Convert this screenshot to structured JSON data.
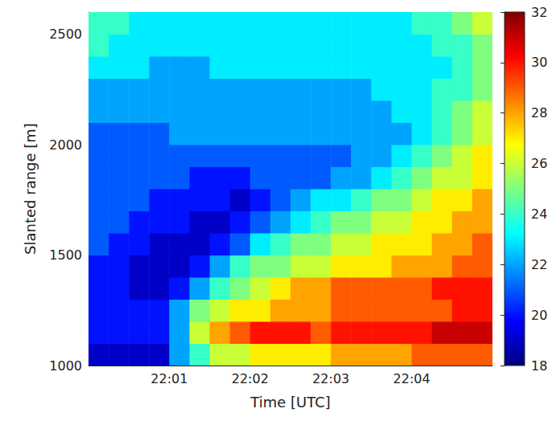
{
  "chart_data": {
    "type": "heatmap",
    "x_label": "Time [UTC]",
    "y_label": "Slanted range [m]",
    "x": [
      1320.125,
      1320.375,
      1320.625,
      1320.875,
      1321.125,
      1321.375,
      1321.625,
      1321.875,
      1322.125,
      1322.375,
      1322.625,
      1322.875,
      1323.125,
      1323.375,
      1323.625,
      1323.875,
      1324.125,
      1324.375,
      1324.625,
      1324.875
    ],
    "y": [
      1050,
      1150,
      1250,
      1350,
      1450,
      1550,
      1650,
      1750,
      1850,
      1950,
      2050,
      2150,
      2250,
      2350,
      2450,
      2550
    ],
    "values": [
      [
        19,
        19,
        19,
        19,
        22,
        24,
        26,
        26,
        27,
        27,
        27,
        27,
        28,
        28,
        28,
        28,
        29,
        29,
        29,
        29
      ],
      [
        20,
        20,
        20,
        20,
        22,
        26,
        28,
        29,
        30,
        30,
        30,
        29,
        30,
        30,
        30,
        30,
        30,
        31,
        31,
        31
      ],
      [
        20,
        20,
        20,
        20,
        22,
        25,
        26,
        27,
        27,
        28,
        28,
        28,
        29,
        29,
        29,
        29,
        29,
        29,
        30,
        30
      ],
      [
        20,
        20,
        19,
        19,
        20,
        22,
        24,
        25,
        26,
        27,
        28,
        28,
        29,
        29,
        29,
        29,
        29,
        30,
        30,
        30
      ],
      [
        20,
        20,
        19,
        19,
        19,
        20,
        22,
        24,
        25,
        25,
        26,
        26,
        27,
        27,
        27,
        28,
        28,
        28,
        29,
        29
      ],
      [
        21,
        20,
        20,
        19,
        19,
        19,
        20,
        21,
        23,
        24,
        25,
        25,
        26,
        26,
        27,
        27,
        27,
        28,
        28,
        29
      ],
      [
        21,
        21,
        20,
        20,
        20,
        19,
        19,
        20,
        21,
        22,
        23,
        24,
        25,
        25,
        26,
        26,
        27,
        27,
        28,
        28
      ],
      [
        21,
        21,
        21,
        20,
        20,
        20,
        20,
        19,
        20,
        21,
        22,
        23,
        23,
        24,
        25,
        25,
        26,
        27,
        27,
        28
      ],
      [
        21,
        21,
        21,
        21,
        21,
        20,
        20,
        20,
        21,
        21,
        21,
        21,
        22,
        22,
        23,
        24,
        25,
        26,
        26,
        27
      ],
      [
        21,
        21,
        21,
        21,
        21,
        21,
        21,
        21,
        21,
        21,
        21,
        21,
        21,
        22,
        22,
        23,
        24,
        25,
        26,
        27
      ],
      [
        21,
        21,
        21,
        21,
        22,
        22,
        22,
        22,
        22,
        22,
        22,
        22,
        22,
        22,
        22,
        22,
        23,
        24,
        25,
        26
      ],
      [
        22,
        22,
        22,
        22,
        22,
        22,
        22,
        22,
        22,
        22,
        22,
        22,
        22,
        22,
        22,
        23,
        23,
        24,
        25,
        26
      ],
      [
        22,
        22,
        22,
        22,
        22,
        22,
        22,
        22,
        22,
        22,
        22,
        22,
        22,
        22,
        23,
        23,
        23,
        24,
        24,
        25
      ],
      [
        23,
        23,
        23,
        22,
        22,
        22,
        23,
        23,
        23,
        23,
        23,
        23,
        23,
        23,
        23,
        23,
        23,
        23,
        24,
        25
      ],
      [
        24,
        23,
        23,
        23,
        23,
        23,
        23,
        23,
        23,
        23,
        23,
        23,
        23,
        23,
        23,
        23,
        23,
        24,
        24,
        25
      ],
      [
        24,
        24,
        23,
        23,
        23,
        23,
        23,
        23,
        23,
        23,
        23,
        23,
        23,
        23,
        23,
        23,
        24,
        24,
        25,
        26
      ]
    ],
    "xlim": [
      1320,
      1325
    ],
    "xticks": [
      {
        "value": 1321,
        "label": "22:01"
      },
      {
        "value": 1322,
        "label": "22:02"
      },
      {
        "value": 1323,
        "label": "22:03"
      },
      {
        "value": 1324,
        "label": "22:04"
      }
    ],
    "ylim": [
      1000,
      2600
    ],
    "yticks": [
      1000,
      1500,
      2000,
      2500
    ],
    "color_range": [
      18,
      32
    ],
    "color_ticks": [
      18,
      20,
      22,
      24,
      26,
      28,
      30,
      32
    ]
  }
}
